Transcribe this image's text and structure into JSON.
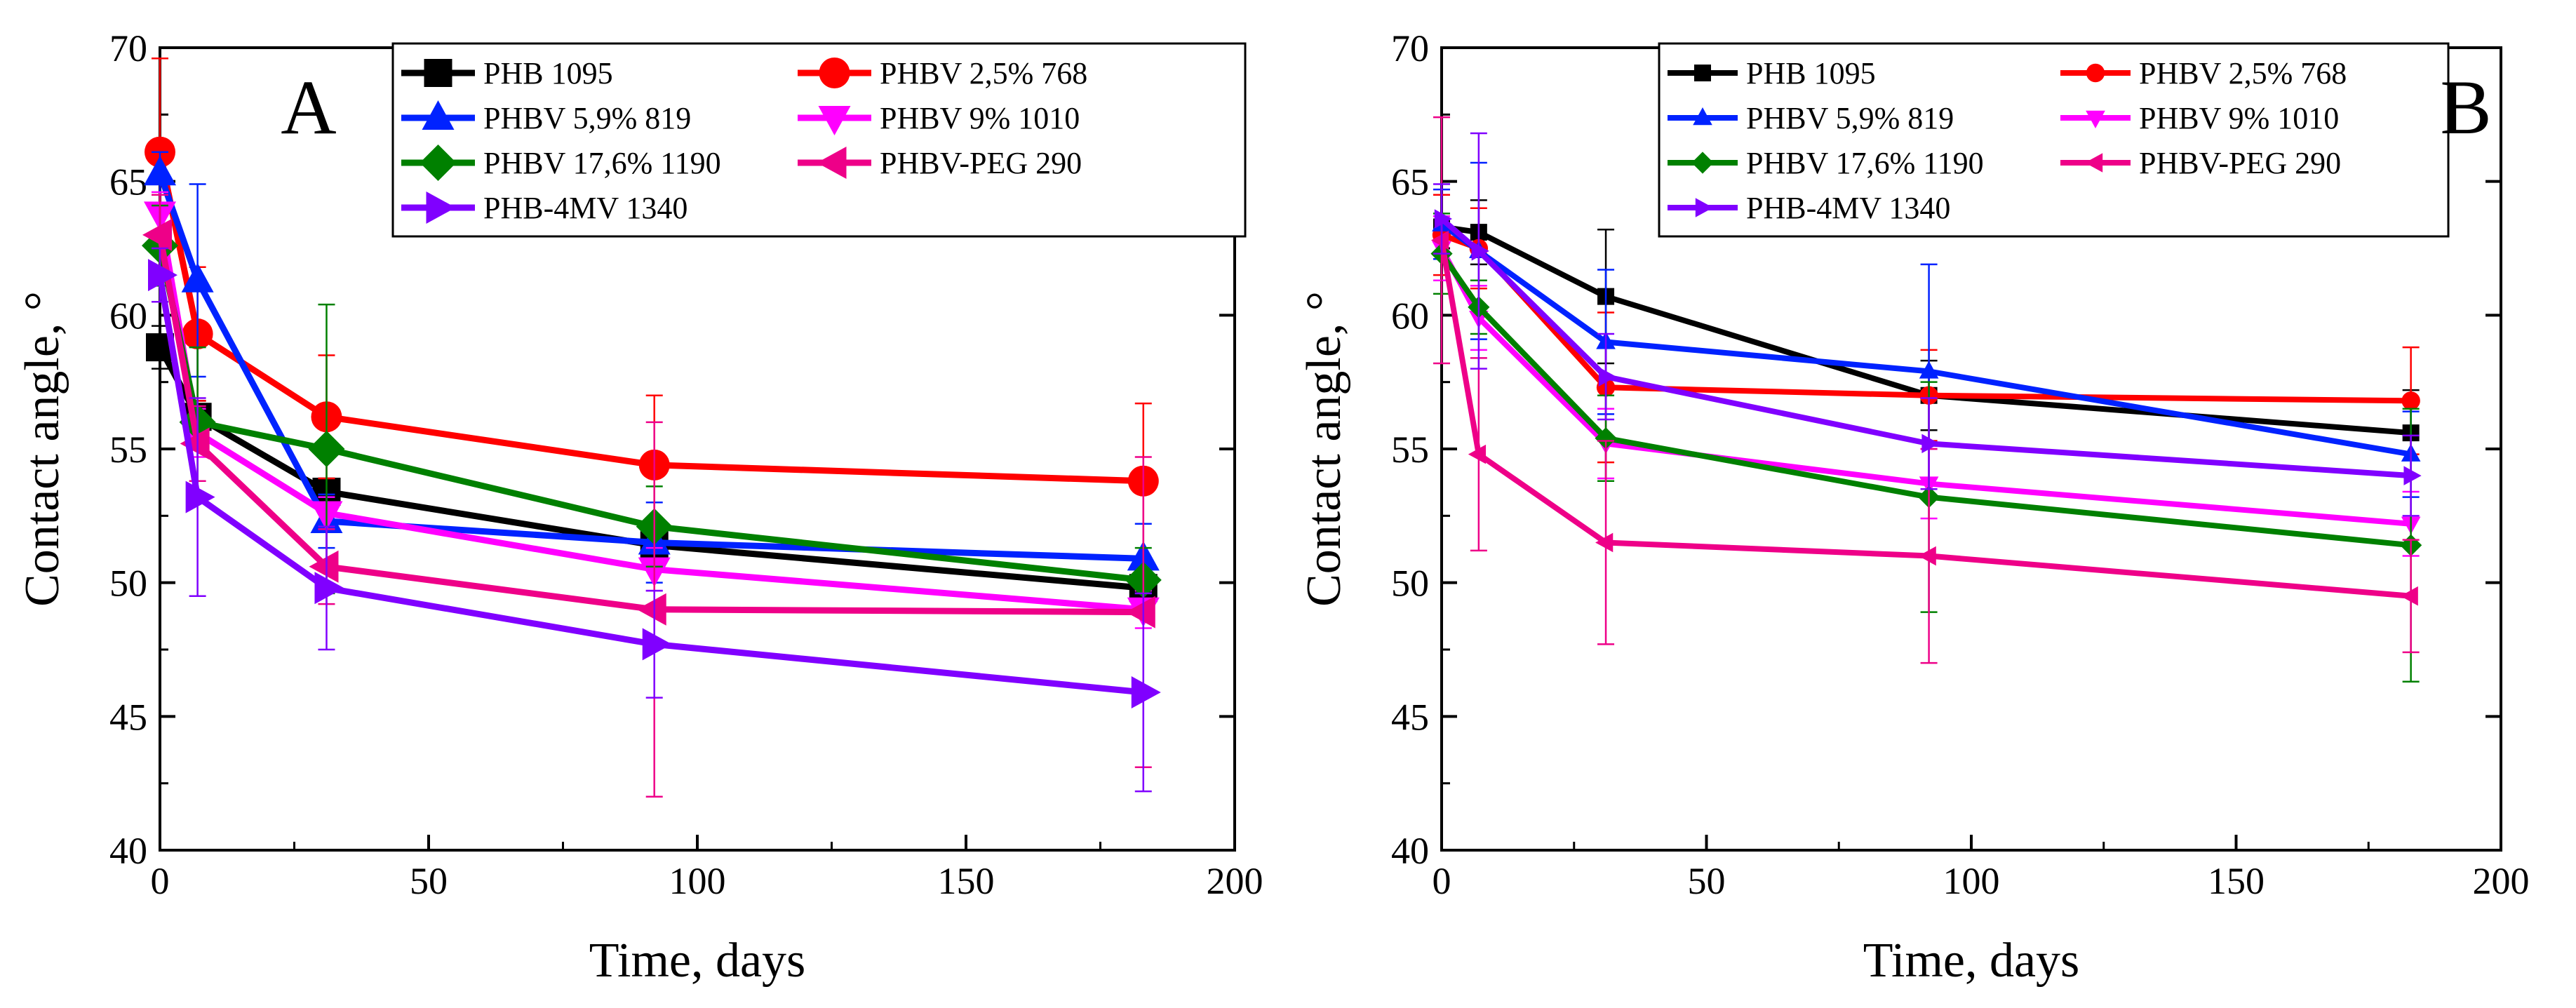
{
  "chart_data": [
    {
      "type": "line",
      "panel_label": "A",
      "xlabel": "Time, days",
      "ylabel": "Contact angle, °",
      "xlim": [
        0,
        200
      ],
      "ylim": [
        40,
        70
      ],
      "xticks": [
        "0",
        "50",
        "100",
        "150",
        "200"
      ],
      "yticks": [
        "40",
        "45",
        "50",
        "55",
        "60",
        "65",
        "70"
      ],
      "legend_position": "top-right",
      "x": [
        0,
        7,
        31,
        92,
        183
      ],
      "series": [
        {
          "name": "PHB 1095",
          "color": "#000000",
          "marker": "square",
          "values": [
            58.8,
            56.2,
            53.4,
            51.4,
            49.8
          ],
          "errors": [
            0.8,
            0.6,
            0.5,
            0.7,
            0.8
          ]
        },
        {
          "name": "PHBV 2,5% 768",
          "color": "#ff0000",
          "marker": "circle",
          "values": [
            66.1,
            59.3,
            56.2,
            54.4,
            53.8
          ],
          "errors": [
            3.5,
            2.5,
            2.3,
            2.6,
            2.9
          ]
        },
        {
          "name": "PHBV 5,9% 819",
          "color": "#0022ff",
          "marker": "triangle-up",
          "values": [
            65.3,
            61.3,
            52.3,
            51.5,
            50.9
          ],
          "errors": [
            0.8,
            3.6,
            1.0,
            1.5,
            1.3
          ]
        },
        {
          "name": "PHBV 9% 1010",
          "color": "#ff00ff",
          "marker": "triangle-down",
          "values": [
            63.8,
            55.6,
            52.6,
            50.5,
            49.0
          ],
          "errors": [
            0.8,
            0.9,
            0.6,
            0.8,
            0.7
          ]
        },
        {
          "name": "PHBV 17,6% 1190",
          "color": "#008000",
          "marker": "diamond",
          "values": [
            62.6,
            56.0,
            55.0,
            52.1,
            50.1
          ],
          "errors": [
            1.5,
            2.8,
            5.4,
            1.5,
            1.2
          ]
        },
        {
          "name": "PHBV-PEG 290",
          "color": "#ee0088",
          "marker": "triangle-left",
          "values": [
            63.0,
            55.2,
            50.6,
            49.0,
            48.9
          ],
          "errors": [
            1.5,
            1.4,
            1.4,
            7.0,
            5.8
          ]
        },
        {
          "name": "PHB-4MV 1340",
          "color": "#8000ff",
          "marker": "triangle-right",
          "values": [
            61.5,
            53.2,
            49.8,
            47.7,
            45.9
          ],
          "errors": [
            1.0,
            3.7,
            2.3,
            2.0,
            3.7
          ]
        }
      ]
    },
    {
      "type": "line",
      "panel_label": "B",
      "xlabel": "Time, days",
      "ylabel": "Contact angle, °",
      "xlim": [
        0,
        200
      ],
      "ylim": [
        40,
        70
      ],
      "xticks": [
        "0",
        "50",
        "100",
        "150",
        "200"
      ],
      "yticks": [
        "40",
        "45",
        "50",
        "55",
        "60",
        "65",
        "70"
      ],
      "legend_position": "top-right",
      "x": [
        0,
        7,
        31,
        92,
        183
      ],
      "series": [
        {
          "name": "PHB 1095",
          "color": "#000000",
          "marker": "square",
          "values": [
            63.3,
            63.1,
            60.7,
            57.0,
            55.6
          ],
          "errors": [
            1.2,
            1.2,
            2.5,
            1.3,
            1.6
          ]
        },
        {
          "name": "PHBV 2,5% 768",
          "color": "#ff0000",
          "marker": "circle",
          "values": [
            63.0,
            62.5,
            57.3,
            57.0,
            56.8
          ],
          "errors": [
            1.5,
            1.5,
            2.8,
            1.7,
            2.0
          ]
        },
        {
          "name": "PHBV 5,9% 819",
          "color": "#0022ff",
          "marker": "triangle-up",
          "values": [
            63.4,
            62.4,
            59.0,
            57.9,
            54.8
          ],
          "errors": [
            1.3,
            3.3,
            2.7,
            4.0,
            1.6
          ]
        },
        {
          "name": "PHBV 9% 1010",
          "color": "#ff00ff",
          "marker": "triangle-down",
          "values": [
            62.5,
            59.9,
            55.2,
            53.7,
            52.2
          ],
          "errors": [
            1.2,
            1.2,
            1.3,
            1.3,
            1.2
          ]
        },
        {
          "name": "PHBV 17,6% 1190",
          "color": "#008000",
          "marker": "diamond",
          "values": [
            62.3,
            60.3,
            55.4,
            53.2,
            51.4
          ],
          "errors": [
            1.5,
            1.0,
            1.6,
            4.3,
            5.1
          ]
        },
        {
          "name": "PHBV-PEG 290",
          "color": "#ee0088",
          "marker": "triangle-left",
          "values": [
            62.8,
            54.8,
            51.5,
            51.0,
            49.5
          ],
          "errors": [
            4.6,
            3.6,
            3.8,
            4.0,
            2.1
          ]
        },
        {
          "name": "PHB-4MV 1340",
          "color": "#8000ff",
          "marker": "triangle-right",
          "values": [
            63.6,
            62.4,
            57.7,
            55.2,
            54.0
          ],
          "errors": [
            1.3,
            4.4,
            1.6,
            1.7,
            1.5
          ]
        }
      ]
    }
  ]
}
